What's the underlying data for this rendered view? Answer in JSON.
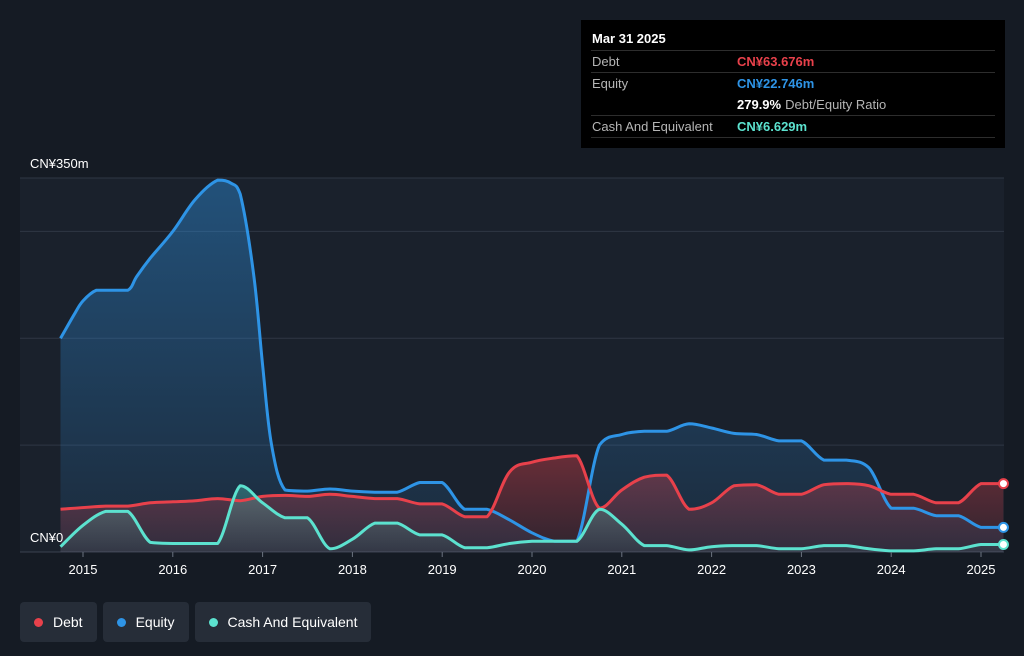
{
  "chart_data": {
    "type": "area",
    "title": "",
    "xlabel": "",
    "ylabel": "",
    "currency_prefix": "CN¥",
    "y_tick_labels": [
      "CN¥350m",
      "CN¥0"
    ],
    "ylim": [
      0,
      350
    ],
    "xlim": [
      2014.75,
      2025.25
    ],
    "x_tick_labels": [
      "2015",
      "2016",
      "2017",
      "2018",
      "2019",
      "2020",
      "2021",
      "2022",
      "2023",
      "2024",
      "2025"
    ],
    "x_ticks": [
      2015,
      2016,
      2017,
      2018,
      2019,
      2020,
      2021,
      2022,
      2023,
      2024,
      2025
    ],
    "grid": true,
    "legend_position": "bottom-left",
    "series": [
      {
        "name": "Debt",
        "color": "#e8414b",
        "points": [
          [
            2014.75,
            40
          ],
          [
            2015.25,
            43
          ],
          [
            2015.5,
            43
          ],
          [
            2015.75,
            46
          ],
          [
            2016.0,
            47
          ],
          [
            2016.25,
            48
          ],
          [
            2016.5,
            50
          ],
          [
            2016.75,
            48
          ],
          [
            2017.0,
            52
          ],
          [
            2017.25,
            53
          ],
          [
            2017.5,
            52
          ],
          [
            2017.75,
            54
          ],
          [
            2018.0,
            52
          ],
          [
            2018.25,
            50
          ],
          [
            2018.5,
            50
          ],
          [
            2018.75,
            45
          ],
          [
            2019.0,
            45
          ],
          [
            2019.25,
            33
          ],
          [
            2019.5,
            33
          ],
          [
            2019.75,
            75
          ],
          [
            2020.0,
            84
          ],
          [
            2020.25,
            88
          ],
          [
            2020.5,
            90
          ],
          [
            2020.75,
            41
          ],
          [
            2021.0,
            58
          ],
          [
            2021.25,
            70
          ],
          [
            2021.5,
            72
          ],
          [
            2021.75,
            40
          ],
          [
            2022.0,
            46
          ],
          [
            2022.25,
            62
          ],
          [
            2022.5,
            63
          ],
          [
            2022.75,
            54
          ],
          [
            2023.0,
            54
          ],
          [
            2023.25,
            63
          ],
          [
            2023.5,
            64
          ],
          [
            2023.75,
            62
          ],
          [
            2024.0,
            54
          ],
          [
            2024.25,
            54
          ],
          [
            2024.5,
            46
          ],
          [
            2024.75,
            46
          ],
          [
            2025.0,
            64
          ],
          [
            2025.25,
            64
          ]
        ]
      },
      {
        "name": "Equity",
        "color": "#2e94e6",
        "points": [
          [
            2014.75,
            200
          ],
          [
            2014.9,
            222
          ],
          [
            2015.0,
            235
          ],
          [
            2015.15,
            245
          ],
          [
            2015.3,
            245
          ],
          [
            2015.5,
            245
          ],
          [
            2015.6,
            258
          ],
          [
            2015.75,
            275
          ],
          [
            2016.0,
            300
          ],
          [
            2016.25,
            330
          ],
          [
            2016.5,
            348
          ],
          [
            2016.65,
            345
          ],
          [
            2016.75,
            335
          ],
          [
            2016.9,
            260
          ],
          [
            2017.0,
            175
          ],
          [
            2017.1,
            100
          ],
          [
            2017.25,
            58
          ],
          [
            2017.5,
            57
          ],
          [
            2017.75,
            59
          ],
          [
            2018.0,
            57
          ],
          [
            2018.25,
            56
          ],
          [
            2018.5,
            56
          ],
          [
            2018.75,
            65
          ],
          [
            2019.0,
            65
          ],
          [
            2019.25,
            40
          ],
          [
            2019.5,
            40
          ],
          [
            2019.75,
            30
          ],
          [
            2020.0,
            18
          ],
          [
            2020.25,
            10
          ],
          [
            2020.5,
            10
          ],
          [
            2020.75,
            100
          ],
          [
            2021.0,
            110
          ],
          [
            2021.25,
            113
          ],
          [
            2021.5,
            113
          ],
          [
            2021.75,
            120
          ],
          [
            2022.0,
            116
          ],
          [
            2022.25,
            111
          ],
          [
            2022.5,
            110
          ],
          [
            2022.75,
            104
          ],
          [
            2023.0,
            104
          ],
          [
            2023.25,
            86
          ],
          [
            2023.5,
            86
          ],
          [
            2023.75,
            79
          ],
          [
            2024.0,
            41
          ],
          [
            2024.25,
            41
          ],
          [
            2024.5,
            34
          ],
          [
            2024.75,
            34
          ],
          [
            2025.0,
            23
          ],
          [
            2025.25,
            23
          ]
        ]
      },
      {
        "name": "Cash And Equivalent",
        "color": "#5ce2cf",
        "points": [
          [
            2014.75,
            5
          ],
          [
            2015.0,
            25
          ],
          [
            2015.25,
            38
          ],
          [
            2015.5,
            38
          ],
          [
            2015.75,
            9
          ],
          [
            2016.0,
            8
          ],
          [
            2016.25,
            8
          ],
          [
            2016.5,
            8
          ],
          [
            2016.75,
            62
          ],
          [
            2017.0,
            46
          ],
          [
            2017.25,
            32
          ],
          [
            2017.5,
            32
          ],
          [
            2017.75,
            3
          ],
          [
            2018.0,
            12
          ],
          [
            2018.25,
            27
          ],
          [
            2018.5,
            27
          ],
          [
            2018.75,
            16
          ],
          [
            2019.0,
            16
          ],
          [
            2019.25,
            4
          ],
          [
            2019.5,
            4
          ],
          [
            2019.75,
            8
          ],
          [
            2020.0,
            10
          ],
          [
            2020.25,
            10
          ],
          [
            2020.5,
            10
          ],
          [
            2020.75,
            40
          ],
          [
            2021.0,
            26
          ],
          [
            2021.25,
            6
          ],
          [
            2021.5,
            6
          ],
          [
            2021.75,
            2
          ],
          [
            2022.0,
            5
          ],
          [
            2022.25,
            6
          ],
          [
            2022.5,
            6
          ],
          [
            2022.75,
            3
          ],
          [
            2023.0,
            3
          ],
          [
            2023.25,
            6
          ],
          [
            2023.5,
            6
          ],
          [
            2023.75,
            3
          ],
          [
            2024.0,
            1
          ],
          [
            2024.25,
            1
          ],
          [
            2024.5,
            3
          ],
          [
            2024.75,
            3
          ],
          [
            2025.0,
            7
          ],
          [
            2025.25,
            7
          ]
        ]
      }
    ]
  },
  "tooltip": {
    "date": "Mar 31 2025",
    "rows": [
      {
        "label": "Debt",
        "value": "CN¥63.676m",
        "color": "#e8414b"
      },
      {
        "label": "Equity",
        "value": "CN¥22.746m",
        "color": "#2e94e6"
      },
      {
        "label": "",
        "value": "279.9%",
        "suffix": "Debt/Equity Ratio",
        "color": "#ffffff"
      },
      {
        "label": "Cash And Equivalent",
        "value": "CN¥6.629m",
        "color": "#5ce2cf"
      }
    ]
  },
  "legend": [
    {
      "label": "Debt",
      "color": "#e8414b"
    },
    {
      "label": "Equity",
      "color": "#2e94e6"
    },
    {
      "label": "Cash And Equivalent",
      "color": "#5ce2cf"
    }
  ]
}
